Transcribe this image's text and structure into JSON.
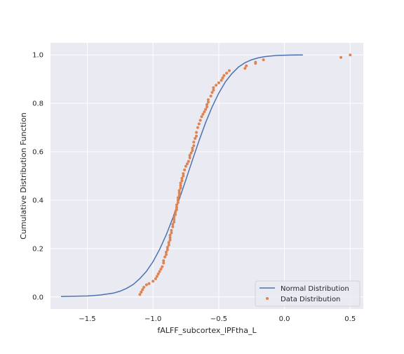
{
  "chart_data": {
    "type": "line",
    "xlabel": "fALFF_subcortex_lPFtha_L",
    "ylabel": "Cumulative Distribution Function",
    "xlim": [
      -1.78,
      0.6
    ],
    "ylim": [
      -0.05,
      1.05
    ],
    "x_ticks": [
      -1.5,
      -1.0,
      -0.5,
      0.0,
      0.5
    ],
    "x_tick_labels": [
      "−1.5",
      "−1.0",
      "−0.5",
      "0.0",
      "0.5"
    ],
    "y_ticks": [
      0.0,
      0.2,
      0.4,
      0.6,
      0.8,
      1.0
    ],
    "y_tick_labels": [
      "0.0",
      "0.2",
      "0.4",
      "0.6",
      "0.8",
      "1.0"
    ],
    "grid": true,
    "legend_position": "lower-right",
    "colors": {
      "background": "#eaeaf2",
      "grid": "#ffffff",
      "normal": "#4c72b0",
      "data": "#dd8452"
    },
    "series": [
      {
        "name": "Normal Distribution",
        "kind": "line",
        "x": [
          -1.7,
          -1.6,
          -1.5,
          -1.4,
          -1.3,
          -1.25,
          -1.2,
          -1.15,
          -1.1,
          -1.05,
          -1.0,
          -0.95,
          -0.9,
          -0.85,
          -0.8,
          -0.75,
          -0.7,
          -0.65,
          -0.6,
          -0.55,
          -0.5,
          -0.45,
          -0.4,
          -0.35,
          -0.3,
          -0.25,
          -0.2,
          -0.15,
          -0.1,
          -0.05,
          0.0,
          0.05,
          0.1,
          0.14
        ],
        "y": [
          0.002,
          0.003,
          0.004,
          0.008,
          0.016,
          0.024,
          0.036,
          0.052,
          0.076,
          0.106,
          0.146,
          0.196,
          0.256,
          0.326,
          0.404,
          0.484,
          0.566,
          0.646,
          0.72,
          0.786,
          0.842,
          0.888,
          0.923,
          0.95,
          0.968,
          0.98,
          0.988,
          0.993,
          0.996,
          0.998,
          0.999,
          0.9995,
          1.0,
          1.0
        ]
      },
      {
        "name": "Data Distribution",
        "kind": "scatter",
        "x": [
          -1.1,
          -1.09,
          -1.08,
          -1.07,
          -1.05,
          -1.03,
          -1.0,
          -0.98,
          -0.97,
          -0.96,
          -0.95,
          -0.94,
          -0.93,
          -0.92,
          -0.92,
          -0.91,
          -0.9,
          -0.9,
          -0.89,
          -0.89,
          -0.88,
          -0.88,
          -0.87,
          -0.87,
          -0.87,
          -0.86,
          -0.86,
          -0.85,
          -0.85,
          -0.84,
          -0.84,
          -0.84,
          -0.83,
          -0.83,
          -0.82,
          -0.82,
          -0.82,
          -0.81,
          -0.81,
          -0.81,
          -0.8,
          -0.8,
          -0.8,
          -0.79,
          -0.79,
          -0.79,
          -0.78,
          -0.78,
          -0.77,
          -0.77,
          -0.76,
          -0.75,
          -0.74,
          -0.73,
          -0.72,
          -0.72,
          -0.71,
          -0.7,
          -0.7,
          -0.69,
          -0.69,
          -0.68,
          -0.67,
          -0.67,
          -0.66,
          -0.65,
          -0.64,
          -0.63,
          -0.62,
          -0.61,
          -0.6,
          -0.59,
          -0.59,
          -0.58,
          -0.58,
          -0.56,
          -0.55,
          -0.54,
          -0.54,
          -0.52,
          -0.5,
          -0.48,
          -0.47,
          -0.46,
          -0.44,
          -0.42,
          -0.3,
          -0.29,
          -0.22,
          -0.22,
          -0.16,
          0.43,
          0.5
        ],
        "y": [
          0.01,
          0.02,
          0.03,
          0.04,
          0.05,
          0.055,
          0.065,
          0.075,
          0.085,
          0.095,
          0.105,
          0.115,
          0.125,
          0.14,
          0.15,
          0.165,
          0.175,
          0.185,
          0.195,
          0.205,
          0.215,
          0.225,
          0.235,
          0.245,
          0.255,
          0.265,
          0.275,
          0.29,
          0.3,
          0.31,
          0.32,
          0.33,
          0.34,
          0.35,
          0.36,
          0.37,
          0.38,
          0.39,
          0.4,
          0.41,
          0.42,
          0.43,
          0.44,
          0.45,
          0.46,
          0.47,
          0.48,
          0.49,
          0.5,
          0.51,
          0.525,
          0.54,
          0.55,
          0.56,
          0.575,
          0.585,
          0.595,
          0.605,
          0.615,
          0.625,
          0.64,
          0.655,
          0.665,
          0.68,
          0.7,
          0.715,
          0.73,
          0.745,
          0.755,
          0.765,
          0.775,
          0.785,
          0.795,
          0.805,
          0.815,
          0.83,
          0.845,
          0.855,
          0.865,
          0.875,
          0.885,
          0.895,
          0.905,
          0.915,
          0.925,
          0.935,
          0.945,
          0.955,
          0.965,
          0.97,
          0.98,
          0.99,
          1.0
        ]
      }
    ]
  }
}
